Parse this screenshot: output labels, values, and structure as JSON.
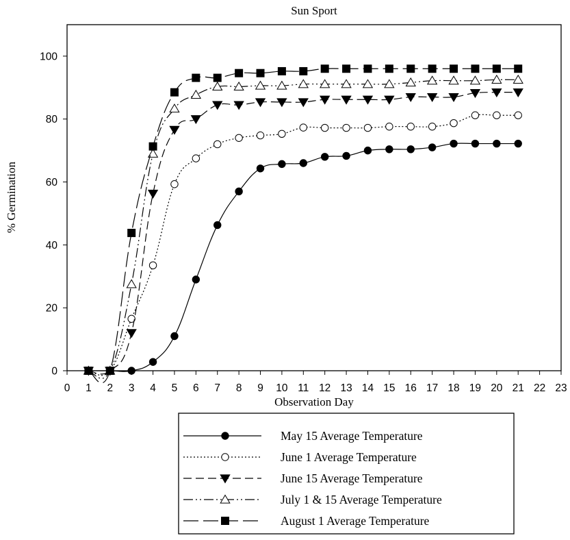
{
  "chart_data": {
    "type": "line",
    "title": "Sun Sport",
    "xlabel": "Observation Day",
    "ylabel": "% Germination",
    "xlim": [
      0,
      23
    ],
    "ylim": [
      0,
      110
    ],
    "x_ticks": [
      "0",
      "1",
      "2",
      "3",
      "4",
      "5",
      "6",
      "7",
      "8",
      "9",
      "10",
      "11",
      "12",
      "13",
      "14",
      "15",
      "16",
      "17",
      "18",
      "19",
      "20",
      "21",
      "22",
      "23"
    ],
    "y_ticks": [
      "0",
      "20",
      "40",
      "60",
      "80",
      "100"
    ],
    "grid": false,
    "legend_position": "bottom",
    "x": [
      1,
      2,
      3,
      4,
      5,
      6,
      7,
      8,
      9,
      10,
      11,
      12,
      13,
      14,
      15,
      16,
      17,
      18,
      19,
      20,
      21
    ],
    "series": [
      {
        "name": "May 15 Average Temperature",
        "marker": "filled-circle",
        "line_style": "solid",
        "values": [
          0,
          0,
          0,
          2.8,
          11,
          29,
          46.3,
          57,
          64.3,
          65.7,
          66,
          68,
          68.3,
          70,
          70.4,
          70.4,
          71,
          72.2,
          72.2,
          72.2,
          72.2
        ]
      },
      {
        "name": "June 1 Average Temperature",
        "marker": "open-circle",
        "line_style": "dotted",
        "values": [
          0,
          0,
          16.5,
          33.5,
          59.3,
          67.5,
          72,
          74,
          74.8,
          75.3,
          77.3,
          77.2,
          77.2,
          77.2,
          77.6,
          77.6,
          77.6,
          78.7,
          81.2,
          81.2,
          81.2
        ]
      },
      {
        "name": "June 15 Average Temperature",
        "marker": "filled-triangle-down",
        "line_style": "dashed",
        "values": [
          0,
          0,
          12,
          56.3,
          76.6,
          80,
          84.5,
          84.5,
          85.4,
          85.4,
          85.4,
          86.2,
          86.2,
          86.2,
          86.2,
          87,
          87,
          87,
          88.3,
          88.5,
          88.5
        ]
      },
      {
        "name": "July 1 & 15 Average Temperature",
        "marker": "open-triangle-up",
        "line_style": "dash-dot-dot",
        "values": [
          0,
          0,
          27.5,
          69,
          83.3,
          87.7,
          90.3,
          90.3,
          90.6,
          90.6,
          91.1,
          91.1,
          91.1,
          91.1,
          91.1,
          91.6,
          92.2,
          92.2,
          92.2,
          92.5,
          92.5
        ]
      },
      {
        "name": "August 1 Average Temperature",
        "marker": "filled-square",
        "line_style": "long-dash",
        "values": [
          0,
          0,
          43.8,
          71.3,
          88.5,
          93.1,
          93.1,
          94.6,
          94.6,
          95.2,
          95.2,
          96,
          96,
          96,
          96,
          96,
          96,
          96,
          96,
          96,
          96
        ]
      }
    ]
  }
}
